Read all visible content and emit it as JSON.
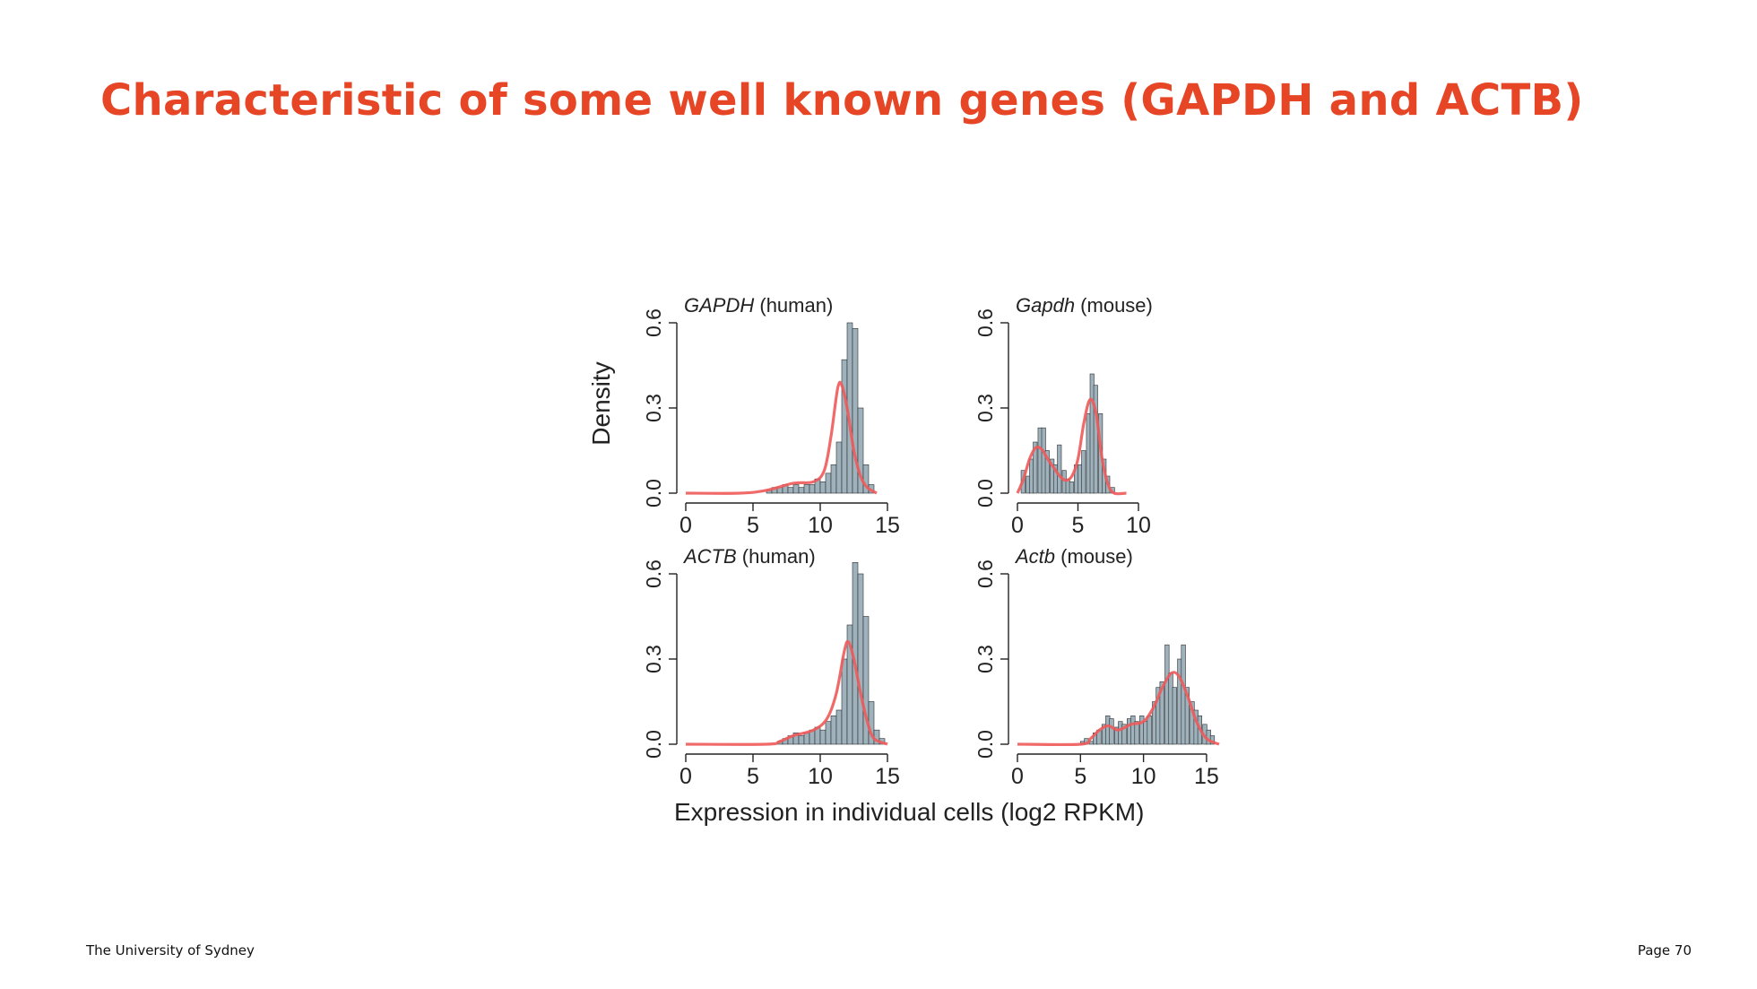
{
  "slide": {
    "title": "Characteristic of some well known genes (GAPDH and ACTB)",
    "footer_left": "The University of Sydney",
    "footer_right": "Page 70"
  },
  "colors": {
    "title": "#E64626",
    "bar_fill": "#9FB2BC",
    "bar_stroke": "#2A2E33",
    "density_curve": "#EE5A5A",
    "axis": "#222222"
  },
  "figure": {
    "ylabel": "Density",
    "xlabel": "Expression in individual cells (log2 RPKM)"
  },
  "chart_data": [
    {
      "type": "bar",
      "title_gene": "GAPDH",
      "title_species": "(human)",
      "xlim": [
        0,
        15
      ],
      "xticks": [
        0,
        5,
        10,
        15
      ],
      "ylim": [
        0,
        0.6
      ],
      "yticks": [
        "0.0",
        "0.3",
        "0.6"
      ],
      "bin_width": 0.4,
      "bins": [
        [
          6.0,
          0.01
        ],
        [
          6.4,
          0.02
        ],
        [
          6.8,
          0.02
        ],
        [
          7.2,
          0.03
        ],
        [
          7.6,
          0.02
        ],
        [
          8.0,
          0.03
        ],
        [
          8.4,
          0.02
        ],
        [
          8.8,
          0.03
        ],
        [
          9.2,
          0.03
        ],
        [
          9.6,
          0.05
        ],
        [
          10.0,
          0.04
        ],
        [
          10.4,
          0.07
        ],
        [
          10.8,
          0.1
        ],
        [
          11.2,
          0.18
        ],
        [
          11.6,
          0.47
        ],
        [
          12.0,
          0.6
        ],
        [
          12.4,
          0.58
        ],
        [
          12.8,
          0.3
        ],
        [
          13.2,
          0.1
        ],
        [
          13.6,
          0.03
        ]
      ],
      "density": [
        [
          0,
          0.0
        ],
        [
          4,
          0.0
        ],
        [
          6,
          0.01
        ],
        [
          8,
          0.035
        ],
        [
          9.5,
          0.04
        ],
        [
          10.3,
          0.08
        ],
        [
          10.8,
          0.2
        ],
        [
          11.3,
          0.37
        ],
        [
          11.6,
          0.38
        ],
        [
          12.0,
          0.3
        ],
        [
          12.5,
          0.15
        ],
        [
          13.0,
          0.06
        ],
        [
          13.5,
          0.02
        ],
        [
          14.2,
          0.0
        ]
      ]
    },
    {
      "type": "bar",
      "title_gene": "Gapdh",
      "title_species": "(mouse)",
      "xlim": [
        0,
        10
      ],
      "xticks": [
        0,
        5,
        10
      ],
      "ylim": [
        0,
        0.6
      ],
      "yticks": [
        "0.0",
        "0.3",
        "0.6"
      ],
      "bin_width": 0.33,
      "bins": [
        [
          0.3,
          0.08
        ],
        [
          0.7,
          0.06
        ],
        [
          1.0,
          0.12
        ],
        [
          1.3,
          0.18
        ],
        [
          1.7,
          0.23
        ],
        [
          2.0,
          0.23
        ],
        [
          2.3,
          0.15
        ],
        [
          2.7,
          0.12
        ],
        [
          3.0,
          0.1
        ],
        [
          3.3,
          0.17
        ],
        [
          3.7,
          0.08
        ],
        [
          4.0,
          0.05
        ],
        [
          4.3,
          0.04
        ],
        [
          4.7,
          0.1
        ],
        [
          5.0,
          0.1
        ],
        [
          5.3,
          0.15
        ],
        [
          5.7,
          0.28
        ],
        [
          6.0,
          0.42
        ],
        [
          6.3,
          0.38
        ],
        [
          6.7,
          0.28
        ],
        [
          7.0,
          0.12
        ],
        [
          7.3,
          0.06
        ],
        [
          7.7,
          0.02
        ]
      ],
      "density": [
        [
          0,
          0.0
        ],
        [
          0.5,
          0.05
        ],
        [
          1.0,
          0.12
        ],
        [
          1.5,
          0.16
        ],
        [
          2.0,
          0.155
        ],
        [
          2.5,
          0.12
        ],
        [
          3.0,
          0.09
        ],
        [
          3.5,
          0.06
        ],
        [
          4.0,
          0.045
        ],
        [
          4.5,
          0.06
        ],
        [
          5.0,
          0.12
        ],
        [
          5.5,
          0.25
        ],
        [
          6.0,
          0.33
        ],
        [
          6.5,
          0.28
        ],
        [
          7.0,
          0.12
        ],
        [
          7.5,
          0.03
        ],
        [
          8.0,
          0.0
        ],
        [
          9.0,
          0.0
        ]
      ]
    },
    {
      "type": "bar",
      "title_gene": "ACTB",
      "title_species": "(human)",
      "xlim": [
        0,
        15
      ],
      "xticks": [
        0,
        5,
        10,
        15
      ],
      "ylim": [
        0,
        0.6
      ],
      "yticks": [
        "0.0",
        "0.3",
        "0.6"
      ],
      "bin_width": 0.4,
      "bins": [
        [
          6.8,
          0.01
        ],
        [
          7.2,
          0.02
        ],
        [
          7.6,
          0.03
        ],
        [
          8.0,
          0.04
        ],
        [
          8.4,
          0.03
        ],
        [
          8.8,
          0.04
        ],
        [
          9.2,
          0.05
        ],
        [
          9.6,
          0.06
        ],
        [
          10.0,
          0.05
        ],
        [
          10.4,
          0.08
        ],
        [
          10.8,
          0.1
        ],
        [
          11.2,
          0.12
        ],
        [
          11.6,
          0.3
        ],
        [
          12.0,
          0.42
        ],
        [
          12.4,
          0.64
        ],
        [
          12.8,
          0.6
        ],
        [
          13.2,
          0.45
        ],
        [
          13.6,
          0.15
        ],
        [
          14.0,
          0.05
        ],
        [
          14.4,
          0.02
        ]
      ],
      "density": [
        [
          0,
          0.0
        ],
        [
          6,
          0.0
        ],
        [
          7,
          0.01
        ],
        [
          8,
          0.03
        ],
        [
          9.5,
          0.05
        ],
        [
          10.5,
          0.09
        ],
        [
          11.2,
          0.18
        ],
        [
          11.8,
          0.33
        ],
        [
          12.1,
          0.36
        ],
        [
          12.5,
          0.3
        ],
        [
          13.0,
          0.18
        ],
        [
          13.5,
          0.08
        ],
        [
          14.0,
          0.02
        ],
        [
          15.0,
          0.0
        ]
      ]
    },
    {
      "type": "bar",
      "title_gene": "Actb",
      "title_species": "(mouse)",
      "xlim": [
        0,
        16
      ],
      "xticks": [
        0,
        5,
        10,
        15
      ],
      "ylim": [
        0,
        0.6
      ],
      "yticks": [
        "0.0",
        "0.3",
        "0.6"
      ],
      "bin_width": 0.33,
      "bins": [
        [
          5.0,
          0.01
        ],
        [
          5.3,
          0.02
        ],
        [
          5.7,
          0.01
        ],
        [
          6.0,
          0.04
        ],
        [
          6.3,
          0.05
        ],
        [
          6.7,
          0.07
        ],
        [
          7.0,
          0.1
        ],
        [
          7.3,
          0.09
        ],
        [
          7.7,
          0.06
        ],
        [
          8.0,
          0.08
        ],
        [
          8.3,
          0.07
        ],
        [
          8.7,
          0.09
        ],
        [
          9.0,
          0.1
        ],
        [
          9.3,
          0.08
        ],
        [
          9.7,
          0.1
        ],
        [
          10.0,
          0.08
        ],
        [
          10.3,
          0.1
        ],
        [
          10.7,
          0.15
        ],
        [
          11.0,
          0.2
        ],
        [
          11.3,
          0.22
        ],
        [
          11.7,
          0.35
        ],
        [
          12.0,
          0.25
        ],
        [
          12.3,
          0.2
        ],
        [
          12.7,
          0.3
        ],
        [
          13.0,
          0.35
        ],
        [
          13.3,
          0.2
        ],
        [
          13.7,
          0.15
        ],
        [
          14.0,
          0.12
        ],
        [
          14.3,
          0.1
        ],
        [
          14.7,
          0.07
        ],
        [
          15.0,
          0.05
        ],
        [
          15.3,
          0.03
        ]
      ],
      "density": [
        [
          0,
          0.0
        ],
        [
          5,
          0.0
        ],
        [
          5.8,
          0.02
        ],
        [
          6.5,
          0.05
        ],
        [
          7.2,
          0.065
        ],
        [
          8.0,
          0.05
        ],
        [
          9.0,
          0.07
        ],
        [
          10.0,
          0.08
        ],
        [
          10.8,
          0.13
        ],
        [
          11.5,
          0.2
        ],
        [
          12.2,
          0.25
        ],
        [
          12.8,
          0.24
        ],
        [
          13.5,
          0.17
        ],
        [
          14.2,
          0.08
        ],
        [
          15.0,
          0.02
        ],
        [
          16.0,
          0.0
        ]
      ]
    }
  ]
}
